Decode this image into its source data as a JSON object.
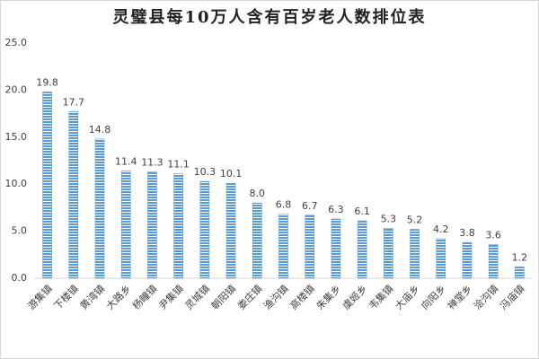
{
  "chart_data": {
    "type": "bar",
    "title": "灵璧县每10万人含有百岁老人数排位表",
    "categories": [
      "游集镇",
      "下楼镇",
      "黄湾镇",
      "大路乡",
      "杨疃镇",
      "尹集镇",
      "灵城镇",
      "朝阳镇",
      "娄庄镇",
      "渔沟镇",
      "高楼镇",
      "朱集乡",
      "虞姬乡",
      "韦集镇",
      "大庙乡",
      "向阳乡",
      "禅堂乡",
      "浍沟镇",
      "冯庙镇"
    ],
    "values": [
      19.8,
      17.7,
      14.8,
      11.4,
      11.3,
      11.1,
      10.3,
      10.1,
      8.0,
      6.8,
      6.7,
      6.3,
      6.1,
      5.3,
      5.2,
      4.2,
      3.8,
      3.6,
      1.2
    ],
    "value_labels": [
      "19.8",
      "17.7",
      "14.8",
      "11.4",
      "11.3",
      "11.1",
      "10.3",
      "10.1",
      "8.0",
      "6.8",
      "6.7",
      "6.3",
      "6.1",
      "5.3",
      "5.2",
      "4.2",
      "3.8",
      "3.6",
      "1.2"
    ],
    "color": "#5b9bd5",
    "ylim": [
      0,
      25
    ],
    "yticks": [
      {
        "value": 0,
        "label": "0.0"
      },
      {
        "value": 5,
        "label": "5.0"
      },
      {
        "value": 10,
        "label": "10.0"
      },
      {
        "value": 15,
        "label": "15.0"
      },
      {
        "value": 20,
        "label": "20.0"
      },
      {
        "value": 25,
        "label": "25.0"
      }
    ],
    "grid": false
  }
}
